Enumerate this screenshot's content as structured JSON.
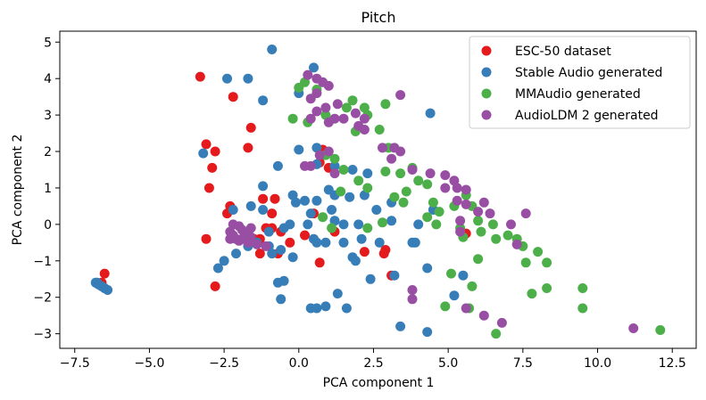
{
  "chart_data": {
    "type": "scatter",
    "title": "Pitch",
    "xlabel": "PCA component 1",
    "ylabel": "PCA component 2",
    "xlim": [
      -8.0,
      13.3
    ],
    "ylim": [
      -3.4,
      5.3
    ],
    "xticks": [
      -7.5,
      -5.0,
      -2.5,
      0.0,
      2.5,
      5.0,
      7.5,
      10.0,
      12.5
    ],
    "xtick_labels": [
      "−7.5",
      "−5.0",
      "−2.5",
      "0.0",
      "2.5",
      "5.0",
      "7.5",
      "10.0",
      "12.5"
    ],
    "yticks": [
      -3,
      -2,
      -1,
      0,
      1,
      2,
      3,
      4,
      5
    ],
    "ytick_labels": [
      "−3",
      "−2",
      "−1",
      "0",
      "1",
      "2",
      "3",
      "4",
      "5"
    ],
    "legend_position": "top-right",
    "series": [
      {
        "name": "ESC-50 dataset",
        "color": "#e41a1c",
        "points": [
          [
            -3.3,
            4.05
          ],
          [
            -2.2,
            3.5
          ],
          [
            -1.6,
            2.65
          ],
          [
            -3.1,
            2.2
          ],
          [
            -1.7,
            2.1
          ],
          [
            -2.8,
            2.0
          ],
          [
            -2.9,
            1.55
          ],
          [
            -3.0,
            1.0
          ],
          [
            -2.3,
            0.5
          ],
          [
            -2.4,
            0.3
          ],
          [
            -1.2,
            0.7
          ],
          [
            -0.8,
            0.7
          ],
          [
            -0.9,
            0.3
          ],
          [
            -0.9,
            -0.1
          ],
          [
            -1.1,
            -0.1
          ],
          [
            -1.3,
            -0.4
          ],
          [
            -1.5,
            -0.4
          ],
          [
            -1.3,
            -0.8
          ],
          [
            -3.1,
            -0.4
          ],
          [
            -2.8,
            -1.7
          ],
          [
            -0.7,
            -0.8
          ],
          [
            -0.6,
            -0.2
          ],
          [
            -0.3,
            -0.5
          ],
          [
            0.2,
            -0.3
          ],
          [
            0.7,
            1.7
          ],
          [
            0.8,
            2.05
          ],
          [
            1.0,
            1.55
          ],
          [
            0.5,
            0.3
          ],
          [
            1.2,
            -0.2
          ],
          [
            0.7,
            -1.05
          ],
          [
            2.2,
            -0.75
          ],
          [
            2.9,
            -0.7
          ],
          [
            2.85,
            -0.8
          ],
          [
            3.1,
            -1.4
          ],
          [
            5.6,
            -0.25
          ],
          [
            -6.5,
            -1.35
          ],
          [
            -6.6,
            -1.6
          ]
        ]
      },
      {
        "name": "Stable Audio generated",
        "color": "#377eb8",
        "points": [
          [
            -0.9,
            4.8
          ],
          [
            -2.4,
            4.0
          ],
          [
            -1.7,
            4.0
          ],
          [
            -1.2,
            3.4
          ],
          [
            -3.2,
            1.95
          ],
          [
            -1.2,
            1.05
          ],
          [
            -0.7,
            1.6
          ],
          [
            0.5,
            4.3
          ],
          [
            0.0,
            3.6
          ],
          [
            0.6,
            2.1
          ],
          [
            0.0,
            2.05
          ],
          [
            0.6,
            1.65
          ],
          [
            1.2,
            1.6
          ],
          [
            1.8,
            1.5
          ],
          [
            2.3,
            1.4
          ],
          [
            1.0,
            0.95
          ],
          [
            -0.2,
            0.8
          ],
          [
            0.2,
            0.65
          ],
          [
            0.6,
            0.65
          ],
          [
            1.2,
            0.8
          ],
          [
            1.7,
            0.75
          ],
          [
            2.2,
            0.8
          ],
          [
            -0.1,
            0.6
          ],
          [
            0.4,
            0.3
          ],
          [
            1.1,
            0.4
          ],
          [
            -2.2,
            0.4
          ],
          [
            -1.6,
            0.5
          ],
          [
            -1.2,
            0.4
          ],
          [
            0.3,
            0.0
          ],
          [
            1.2,
            0.1
          ],
          [
            1.5,
            0.0
          ],
          [
            2.0,
            0.0
          ],
          [
            2.6,
            0.4
          ],
          [
            3.1,
            0.6
          ],
          [
            3.1,
            0.1
          ],
          [
            -1.0,
            -0.2
          ],
          [
            -0.5,
            -0.1
          ],
          [
            -0.3,
            0.0
          ],
          [
            0.5,
            -0.4
          ],
          [
            0.9,
            -0.5
          ],
          [
            1.5,
            -0.5
          ],
          [
            2.1,
            -0.4
          ],
          [
            2.7,
            -0.5
          ],
          [
            3.8,
            -0.5
          ],
          [
            3.9,
            -0.5
          ],
          [
            -1.4,
            -0.5
          ],
          [
            -1.0,
            -0.6
          ],
          [
            -2.5,
            -1.0
          ],
          [
            -2.7,
            -1.2
          ],
          [
            -2.1,
            -0.8
          ],
          [
            -1.7,
            -0.6
          ],
          [
            -0.9,
            -0.8
          ],
          [
            -0.6,
            -0.7
          ],
          [
            -0.2,
            -0.9
          ],
          [
            0.6,
            -0.5
          ],
          [
            1.8,
            -0.9
          ],
          [
            1.9,
            -1.0
          ],
          [
            2.4,
            -1.5
          ],
          [
            3.2,
            -1.4
          ],
          [
            4.3,
            -1.2
          ],
          [
            -0.7,
            -1.6
          ],
          [
            -0.5,
            -1.55
          ],
          [
            1.3,
            -1.9
          ],
          [
            -0.6,
            -2.05
          ],
          [
            0.4,
            -2.3
          ],
          [
            0.6,
            -2.3
          ],
          [
            0.9,
            -2.25
          ],
          [
            1.6,
            -2.3
          ],
          [
            3.4,
            -2.8
          ],
          [
            4.3,
            -2.95
          ],
          [
            4.4,
            3.05
          ],
          [
            4.5,
            0.4
          ],
          [
            4.0,
            0.0
          ],
          [
            5.5,
            -1.4
          ],
          [
            5.2,
            -1.95
          ],
          [
            -6.8,
            -1.6
          ],
          [
            -6.7,
            -1.65
          ],
          [
            -6.6,
            -1.7
          ],
          [
            -6.5,
            -1.75
          ],
          [
            -6.4,
            -1.8
          ],
          [
            -6.75,
            -1.6
          ]
        ]
      },
      {
        "name": "MMAudio generated",
        "color": "#4daf4a",
        "points": [
          [
            0.0,
            3.75
          ],
          [
            0.2,
            3.9
          ],
          [
            0.6,
            3.7
          ],
          [
            -0.2,
            2.9
          ],
          [
            0.3,
            2.8
          ],
          [
            0.9,
            3.0
          ],
          [
            1.6,
            3.2
          ],
          [
            1.8,
            3.4
          ],
          [
            2.2,
            3.2
          ],
          [
            2.9,
            3.3
          ],
          [
            2.3,
            3.0
          ],
          [
            1.9,
            2.55
          ],
          [
            2.7,
            2.6
          ],
          [
            3.0,
            2.1
          ],
          [
            0.9,
            1.9
          ],
          [
            1.2,
            1.8
          ],
          [
            1.5,
            1.5
          ],
          [
            2.0,
            1.2
          ],
          [
            2.3,
            1.0
          ],
          [
            2.9,
            1.45
          ],
          [
            3.4,
            1.4
          ],
          [
            3.8,
            1.55
          ],
          [
            4.0,
            1.2
          ],
          [
            4.3,
            1.1
          ],
          [
            3.2,
            0.75
          ],
          [
            3.5,
            0.6
          ],
          [
            3.6,
            0.9
          ],
          [
            4.5,
            0.6
          ],
          [
            4.7,
            0.35
          ],
          [
            5.2,
            0.5
          ],
          [
            5.6,
            0.8
          ],
          [
            5.8,
            0.5
          ],
          [
            4.3,
            0.2
          ],
          [
            4.6,
            0.0
          ],
          [
            5.4,
            -0.1
          ],
          [
            5.5,
            -0.35
          ],
          [
            6.0,
            0.1
          ],
          [
            6.1,
            -0.2
          ],
          [
            6.5,
            0.0
          ],
          [
            6.6,
            -0.4
          ],
          [
            7.0,
            -0.3
          ],
          [
            7.3,
            -0.4
          ],
          [
            7.5,
            -0.6
          ],
          [
            7.6,
            -1.05
          ],
          [
            8.0,
            -0.75
          ],
          [
            8.3,
            -1.05
          ],
          [
            7.8,
            -1.9
          ],
          [
            8.3,
            -1.75
          ],
          [
            9.5,
            -1.75
          ],
          [
            9.5,
            -2.3
          ],
          [
            6.0,
            -0.95
          ],
          [
            5.1,
            -1.35
          ],
          [
            5.8,
            -1.7
          ],
          [
            5.7,
            -2.3
          ],
          [
            6.6,
            -3.0
          ],
          [
            4.9,
            -2.25
          ],
          [
            12.1,
            -2.9
          ],
          [
            0.8,
            0.2
          ],
          [
            1.1,
            -0.1
          ],
          [
            1.4,
            0.9
          ],
          [
            2.3,
            -0.1
          ],
          [
            2.8,
            0.05
          ]
        ]
      },
      {
        "name": "AudioLDM 2 generated",
        "color": "#984ea3",
        "points": [
          [
            0.3,
            4.1
          ],
          [
            0.6,
            4.0
          ],
          [
            0.8,
            3.9
          ],
          [
            0.6,
            3.6
          ],
          [
            0.4,
            3.45
          ],
          [
            1.0,
            3.8
          ],
          [
            1.3,
            3.3
          ],
          [
            0.9,
            3.2
          ],
          [
            1.2,
            2.9
          ],
          [
            1.9,
            3.05
          ],
          [
            2.2,
            2.9
          ],
          [
            2.0,
            2.7
          ],
          [
            1.5,
            2.9
          ],
          [
            0.6,
            3.1
          ],
          [
            0.4,
            2.9
          ],
          [
            1.0,
            2.8
          ],
          [
            2.2,
            2.6
          ],
          [
            3.4,
            3.55
          ],
          [
            2.8,
            2.1
          ],
          [
            3.2,
            2.1
          ],
          [
            0.7,
            1.9
          ],
          [
            1.0,
            2.0
          ],
          [
            0.4,
            1.6
          ],
          [
            0.2,
            1.6
          ],
          [
            1.2,
            1.4
          ],
          [
            3.1,
            1.8
          ],
          [
            3.4,
            2.0
          ],
          [
            3.8,
            1.5
          ],
          [
            4.4,
            1.4
          ],
          [
            4.9,
            1.35
          ],
          [
            5.2,
            1.2
          ],
          [
            5.3,
            1.0
          ],
          [
            4.9,
            1.0
          ],
          [
            5.6,
            0.95
          ],
          [
            5.3,
            0.65
          ],
          [
            5.6,
            0.55
          ],
          [
            6.2,
            0.6
          ],
          [
            6.0,
            0.35
          ],
          [
            6.4,
            0.3
          ],
          [
            7.1,
            0.0
          ],
          [
            7.3,
            -0.55
          ],
          [
            7.6,
            0.3
          ],
          [
            5.4,
            0.1
          ],
          [
            5.4,
            -0.2
          ],
          [
            3.8,
            -1.8
          ],
          [
            3.8,
            -2.05
          ],
          [
            5.6,
            -2.3
          ],
          [
            6.2,
            -2.5
          ],
          [
            6.8,
            -2.7
          ],
          [
            11.2,
            -2.85
          ],
          [
            -2.3,
            -0.2
          ],
          [
            -2.2,
            -0.3
          ],
          [
            -2.1,
            -0.4
          ],
          [
            -1.8,
            -0.25
          ],
          [
            -1.9,
            -0.4
          ],
          [
            -1.9,
            -0.15
          ],
          [
            -1.6,
            -0.1
          ],
          [
            -1.6,
            -0.35
          ],
          [
            -1.4,
            -0.55
          ],
          [
            -1.1,
            -0.6
          ],
          [
            -2.0,
            -0.05
          ],
          [
            -2.2,
            0.0
          ],
          [
            -2.3,
            -0.4
          ],
          [
            -2.0,
            -0.45
          ],
          [
            -1.7,
            -0.5
          ]
        ]
      }
    ]
  }
}
